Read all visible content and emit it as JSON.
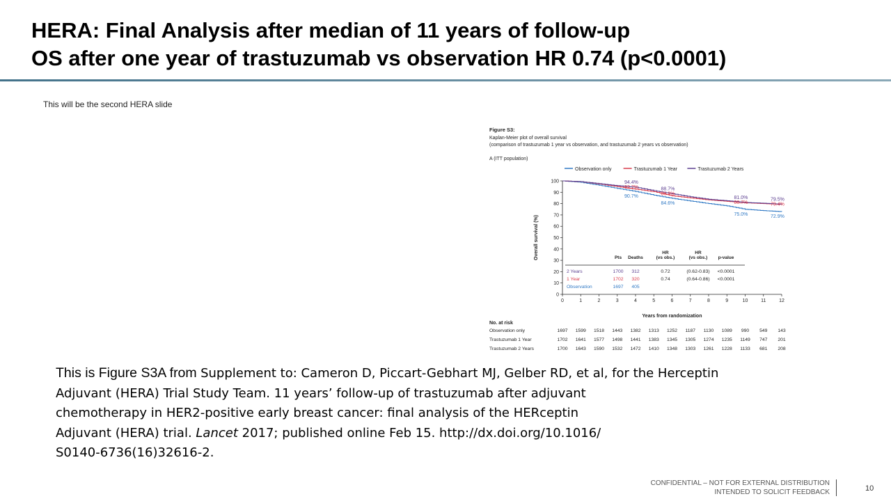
{
  "slide": {
    "title_line1": "HERA: Final Analysis after median of 11 years of follow-up",
    "title_line2": "OS after one year of trastuzumab vs observation HR 0.74 (p<0.0001)",
    "note": "This will be the second HERA slide",
    "caption_intro": "This is Figure S3A from ",
    "caption_line1": "Supplement to: Cameron D, Piccart-Gebhart MJ, Gelber RD, et al, for the Herceptin",
    "caption_line2": "Adjuvant (HERA) Trial Study Team. 11 years’ follow-up of trastuzumab after adjuvant",
    "caption_line3": "chemotherapy in HER2-positive early breast cancer: final analysis of the HERceptin",
    "caption_line4_a": "Adjuvant (HERA) trial. ",
    "caption_line4_journal": "Lancet",
    "caption_line4_b": " 2017; published online Feb 15. http://dx.doi.org/10.1016/",
    "caption_line5": "S0140-6736(16)32616-2.",
    "footer_line1": "CONFIDENTIAL – NOT FOR EXTERNAL DISTRIBUTION",
    "footer_line2": "INTENDED TO SOLICIT FEEDBACK",
    "page_number": "10"
  },
  "figure": {
    "label": "Figure S3:",
    "subtitle1": "Kaplan-Meier plot of overall survival",
    "subtitle2": "(comparison of trastuzumab 1 year vs observation, and trastuzumab 2 years vs observation)",
    "panel": "A (ITT population)"
  },
  "chart_data": {
    "type": "line",
    "title": "Kaplan-Meier plot of overall survival",
    "xlabel": "Years from randomization",
    "ylabel": "Overall survival (%)",
    "xlim": [
      0,
      12
    ],
    "ylim": [
      0,
      100
    ],
    "xticks": [
      0,
      1,
      2,
      3,
      4,
      5,
      6,
      7,
      8,
      9,
      10,
      11,
      12
    ],
    "yticks": [
      0,
      10,
      20,
      30,
      40,
      50,
      60,
      70,
      80,
      90,
      100
    ],
    "grid": false,
    "legend_position": "top",
    "series": [
      {
        "name": "Observation only",
        "color": "#2f78c4",
        "points": [
          [
            0,
            100
          ],
          [
            1,
            98.8
          ],
          [
            2,
            96.2
          ],
          [
            3,
            93.4
          ],
          [
            4,
            90.7
          ],
          [
            5,
            87.4
          ],
          [
            6,
            84.6
          ],
          [
            7,
            82.3
          ],
          [
            8,
            80.0
          ],
          [
            9,
            78.0
          ],
          [
            10,
            75.0
          ],
          [
            11,
            73.8
          ],
          [
            12,
            72.9
          ]
        ],
        "annotations": [
          {
            "x": 4,
            "y": 90.7,
            "text": "90.7%"
          },
          {
            "x": 6,
            "y": 84.6,
            "text": "84.6%"
          },
          {
            "x": 10,
            "y": 75.0,
            "text": "75.0%"
          },
          {
            "x": 12,
            "y": 72.9,
            "text": "72.9%"
          }
        ]
      },
      {
        "name": "Trastuzumab 1 Year",
        "color": "#d93a4a",
        "points": [
          [
            0,
            100
          ],
          [
            1,
            99.3
          ],
          [
            2,
            97.3
          ],
          [
            3,
            95.0
          ],
          [
            4,
            92.7
          ],
          [
            5,
            90.5
          ],
          [
            6,
            86.9
          ],
          [
            7,
            85.0
          ],
          [
            8,
            83.3
          ],
          [
            9,
            82.0
          ],
          [
            10,
            80.7
          ],
          [
            11,
            80.0
          ],
          [
            12,
            79.4
          ]
        ],
        "annotations": [
          {
            "x": 4,
            "y": 92.7,
            "text": "92.7%"
          },
          {
            "x": 6,
            "y": 86.9,
            "text": "86.9%"
          },
          {
            "x": 10,
            "y": 80.7,
            "text": "80.7%"
          },
          {
            "x": 12,
            "y": 79.4,
            "text": "79.4%"
          }
        ]
      },
      {
        "name": "Trastuzumab 2 Years",
        "color": "#5a3d8f",
        "points": [
          [
            0,
            100
          ],
          [
            1,
            99.4
          ],
          [
            2,
            97.6
          ],
          [
            3,
            95.8
          ],
          [
            4,
            94.4
          ],
          [
            5,
            91.4
          ],
          [
            6,
            88.7
          ],
          [
            7,
            86.0
          ],
          [
            8,
            83.8
          ],
          [
            9,
            82.5
          ],
          [
            10,
            81.0
          ],
          [
            11,
            80.3
          ],
          [
            12,
            79.5
          ]
        ],
        "annotations": [
          {
            "x": 4,
            "y": 94.4,
            "text": "94.4%"
          },
          {
            "x": 6,
            "y": 88.7,
            "text": "88.7%"
          },
          {
            "x": 10,
            "y": 81.0,
            "text": "81.0%"
          },
          {
            "x": 12,
            "y": 79.5,
            "text": "79.5%"
          }
        ]
      }
    ],
    "stats_table": {
      "headers": [
        "Pts",
        "Deaths",
        "HR (vs obs.)",
        "HR (vs obs.)",
        "p-value"
      ],
      "rows": [
        {
          "label": "2 Years",
          "color": "#5a3d8f",
          "pts": "1700",
          "deaths": "312",
          "hr": "0.72",
          "ci": "(0.62-0.83)",
          "p": "<0.0001"
        },
        {
          "label": "1 Year",
          "color": "#d93a4a",
          "pts": "1702",
          "deaths": "320",
          "hr": "0.74",
          "ci": "(0.64-0.86)",
          "p": "<0.0001"
        },
        {
          "label": "Observation",
          "color": "#2f78c4",
          "pts": "1697",
          "deaths": "405",
          "hr": "",
          "ci": "",
          "p": ""
        }
      ]
    },
    "at_risk": {
      "title": "No. at risk",
      "rows": [
        {
          "label": "Observation only",
          "values": [
            "1697",
            "1599",
            "1518",
            "1443",
            "1382",
            "1313",
            "1252",
            "1187",
            "1130",
            "1089",
            "990",
            "549",
            "143"
          ]
        },
        {
          "label": "Trastuzumab 1 Year",
          "values": [
            "1702",
            "1641",
            "1577",
            "1498",
            "1441",
            "1383",
            "1345",
            "1305",
            "1274",
            "1235",
            "1149",
            "747",
            "201"
          ]
        },
        {
          "label": "Trastuzumab 2 Years",
          "values": [
            "1700",
            "1643",
            "1590",
            "1532",
            "1472",
            "1410",
            "1348",
            "1303",
            "1261",
            "1228",
            "1133",
            "681",
            "208"
          ]
        }
      ]
    }
  }
}
